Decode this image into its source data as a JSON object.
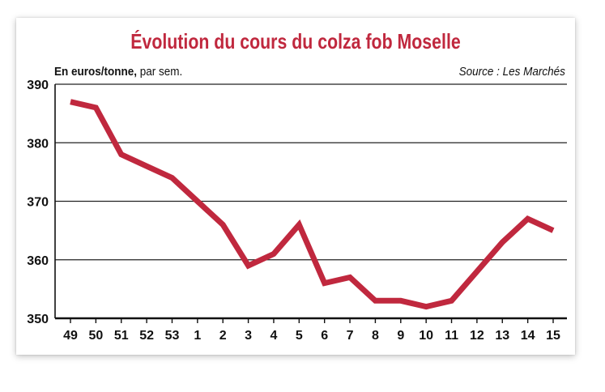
{
  "chart_data": {
    "type": "line",
    "title": "Évolution du cours du colza fob Moselle",
    "ylabel": "En euros/tonne, par sem.",
    "ylabel_bold": "En euros/tonne,",
    "ylabel_rest": " par sem.",
    "source": "Source : Les Marchés",
    "x": [
      "49",
      "50",
      "51",
      "52",
      "53",
      "1",
      "2",
      "3",
      "4",
      "5",
      "6",
      "7",
      "8",
      "9",
      "10",
      "11",
      "12",
      "13",
      "14",
      "15"
    ],
    "series": [
      {
        "values": [
          387,
          386,
          378,
          376,
          374,
          370,
          366,
          359,
          361,
          366,
          356,
          357,
          353,
          353,
          352,
          353,
          358,
          363,
          367,
          365
        ]
      }
    ],
    "ylim": [
      350,
      390
    ],
    "yticks": [
      "350",
      "360",
      "370",
      "380",
      "390"
    ],
    "grid": true,
    "line_color": "#c0283e"
  }
}
